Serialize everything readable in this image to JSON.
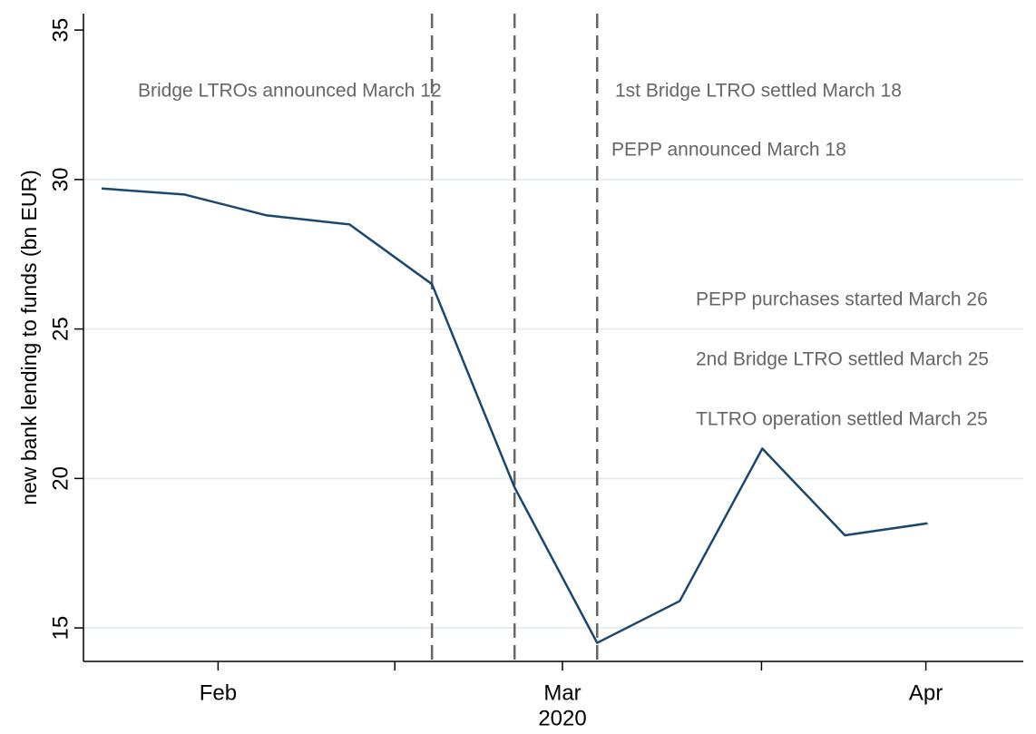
{
  "chart_data": {
    "type": "line",
    "ylabel": "new bank lending to funds (bn EUR)",
    "xlabel": "2020",
    "x": [
      0,
      1,
      2,
      3,
      4,
      5,
      6,
      7,
      8,
      9,
      10
    ],
    "series": [
      {
        "color": "#1a476f",
        "values": [
          29.7,
          29.5,
          28.8,
          28.5,
          26.5,
          19.7,
          14.5,
          15.9,
          21.0,
          18.1,
          18.5
        ]
      }
    ],
    "xlim": [
      -0.22,
      11.16
    ],
    "xticks": [
      {
        "value": 1.41,
        "label": "Feb"
      },
      {
        "value": 5.58,
        "label": "Mar"
      },
      {
        "value": 9.98,
        "label": "Apr"
      }
    ],
    "minor_xticks": [
      3.55,
      7.99
    ],
    "ylim": [
      13.88,
      35.55
    ],
    "yticks": [
      15,
      20,
      25,
      30,
      35
    ],
    "grid": true,
    "vlines": [
      4,
      5,
      6
    ],
    "annotations": [
      "Bridge LTROs announced March 12",
      "1st Bridge LTRO settled March 18",
      "PEPP announced March 18",
      "PEPP purchases started March 26",
      "2nd Bridge LTRO settled March 25",
      "TLTRO operation settled March 25"
    ]
  }
}
